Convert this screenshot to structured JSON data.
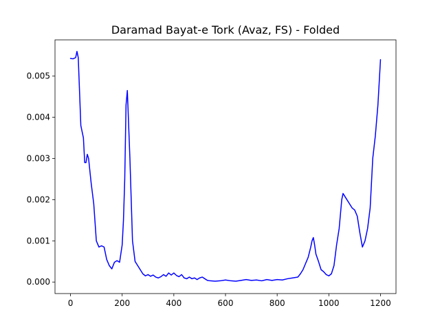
{
  "chart_data": {
    "type": "line",
    "title": "Daramad Bayat-e Tork (Avaz, FS) - Folded",
    "xlabel": "",
    "ylabel": "",
    "xlim": [
      -60,
      1260
    ],
    "ylim": [
      -0.00028,
      0.00588
    ],
    "xticks": [
      0,
      200,
      400,
      600,
      800,
      1000,
      1200
    ],
    "yticks": [
      0.0,
      0.001,
      0.002,
      0.003,
      0.004,
      0.005
    ],
    "xtick_labels": [
      "0",
      "200",
      "400",
      "600",
      "800",
      "1000",
      "1200"
    ],
    "ytick_labels": [
      "0.000",
      "0.001",
      "0.002",
      "0.003",
      "0.004",
      "0.005"
    ],
    "grid": false,
    "legend": "none",
    "series": [
      {
        "color": "#0000ff",
        "x": [
          0,
          10,
          20,
          25,
          30,
          40,
          50,
          55,
          60,
          65,
          70,
          80,
          90,
          100,
          110,
          120,
          130,
          140,
          150,
          160,
          170,
          180,
          190,
          200,
          205,
          210,
          215,
          220,
          230,
          240,
          250,
          260,
          270,
          280,
          290,
          300,
          310,
          320,
          330,
          340,
          350,
          360,
          370,
          380,
          390,
          400,
          410,
          420,
          430,
          440,
          450,
          460,
          470,
          480,
          490,
          500,
          510,
          520,
          530,
          540,
          560,
          580,
          600,
          620,
          640,
          660,
          680,
          700,
          720,
          740,
          760,
          780,
          800,
          820,
          840,
          860,
          880,
          890,
          900,
          910,
          920,
          930,
          935,
          940,
          945,
          950,
          960,
          970,
          980,
          990,
          1000,
          1010,
          1020,
          1030,
          1040,
          1050,
          1055,
          1060,
          1070,
          1080,
          1090,
          1100,
          1110,
          1120,
          1130,
          1140,
          1150,
          1160,
          1170,
          1180,
          1190,
          1200
        ],
        "y": [
          0.00543,
          0.00542,
          0.00545,
          0.0056,
          0.00545,
          0.0038,
          0.0035,
          0.0029,
          0.0029,
          0.0031,
          0.003,
          0.0024,
          0.0019,
          0.001,
          0.00085,
          0.00088,
          0.00085,
          0.00055,
          0.0004,
          0.00032,
          0.00048,
          0.00052,
          0.00048,
          0.0009,
          0.0015,
          0.0025,
          0.0043,
          0.00465,
          0.003,
          0.001,
          0.0005,
          0.0004,
          0.0003,
          0.0002,
          0.00015,
          0.00018,
          0.00014,
          0.00017,
          0.00012,
          0.0001,
          0.00013,
          0.00018,
          0.00014,
          0.00022,
          0.00017,
          0.00022,
          0.00016,
          0.00013,
          0.00018,
          0.0001,
          8e-05,
          0.00012,
          8e-05,
          0.0001,
          6e-05,
          0.0001,
          0.00012,
          8e-05,
          4e-05,
          3e-05,
          2e-05,
          3e-05,
          5e-05,
          3e-05,
          2e-05,
          4e-05,
          6e-05,
          4e-05,
          5e-05,
          3e-05,
          6e-05,
          4e-05,
          6e-05,
          5e-05,
          8e-05,
          0.0001,
          0.00012,
          0.0002,
          0.0003,
          0.00045,
          0.0006,
          0.00085,
          0.001,
          0.00108,
          0.0009,
          0.00068,
          0.0005,
          0.0003,
          0.00025,
          0.00018,
          0.00015,
          0.0002,
          0.0004,
          0.0009,
          0.0013,
          0.002,
          0.00215,
          0.0021,
          0.002,
          0.0019,
          0.0018,
          0.00175,
          0.0016,
          0.0012,
          0.00085,
          0.001,
          0.0013,
          0.0018,
          0.003,
          0.00355,
          0.0043,
          0.0054
        ]
      }
    ]
  }
}
